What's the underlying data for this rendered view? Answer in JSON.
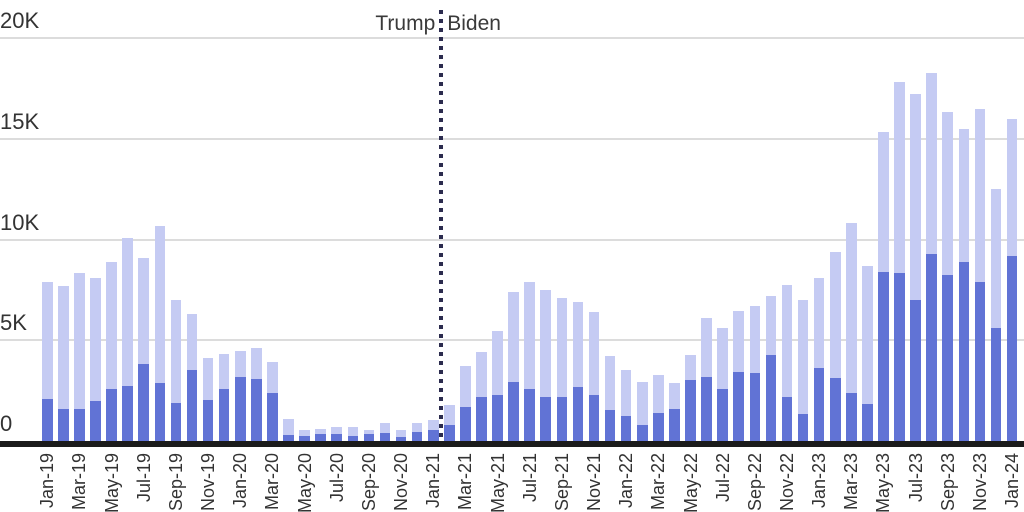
{
  "chart_data": {
    "type": "bar",
    "stacked": true,
    "title": "",
    "xlabel": "",
    "ylabel": "",
    "ylim": [
      0,
      20000
    ],
    "grid": "horizontal",
    "legend": "none",
    "x_tick_every": 2,
    "categories": [
      "Jan-19",
      "Feb-19",
      "Mar-19",
      "Apr-19",
      "May-19",
      "Jun-19",
      "Jul-19",
      "Aug-19",
      "Sep-19",
      "Oct-19",
      "Nov-19",
      "Dec-19",
      "Jan-20",
      "Feb-20",
      "Mar-20",
      "Apr-20",
      "May-20",
      "Jun-20",
      "Jul-20",
      "Aug-20",
      "Sep-20",
      "Oct-20",
      "Nov-20",
      "Dec-20",
      "Jan-21",
      "Feb-21",
      "Mar-21",
      "Apr-21",
      "May-21",
      "Jun-21",
      "Jul-21",
      "Aug-21",
      "Sep-21",
      "Oct-21",
      "Nov-21",
      "Dec-21",
      "Jan-22",
      "Feb-22",
      "Mar-22",
      "Apr-22",
      "May-22",
      "Jun-22",
      "Jul-22",
      "Aug-22",
      "Sep-22",
      "Oct-22",
      "Nov-22",
      "Dec-22",
      "Jan-23",
      "Feb-23",
      "Mar-23",
      "Apr-23",
      "May-23",
      "Jun-23",
      "Jul-23",
      "Aug-23",
      "Sep-23",
      "Oct-23",
      "Nov-23",
      "Dec-23",
      "Jan-24"
    ],
    "series": [
      {
        "name": "bottom-segment-dark-blue",
        "color": "#6173d5",
        "values": [
          2100,
          1600,
          1600,
          2000,
          2600,
          2750,
          3800,
          2900,
          1900,
          3500,
          2050,
          2600,
          3200,
          3100,
          2400,
          300,
          250,
          350,
          350,
          250,
          350,
          400,
          200,
          450,
          550,
          800,
          1700,
          2200,
          2300,
          2950,
          2600,
          2200,
          2200,
          2700,
          2300,
          1550,
          1250,
          800,
          1400,
          1600,
          3050,
          3200,
          2600,
          3400,
          3350,
          4250,
          2200,
          1350,
          3600,
          3150,
          2400,
          1850,
          8400,
          8350,
          7000,
          9300,
          8250,
          8900,
          7900,
          5600,
          9200
        ]
      },
      {
        "name": "top-segment-light-blue",
        "color": "#c5cbf3",
        "values": [
          5800,
          6100,
          6750,
          6100,
          6300,
          7300,
          5300,
          7750,
          5100,
          2800,
          2050,
          1700,
          1250,
          1500,
          1500,
          800,
          300,
          250,
          350,
          450,
          200,
          500,
          350,
          450,
          500,
          1000,
          2000,
          2200,
          3150,
          4450,
          5300,
          5300,
          4900,
          4200,
          4100,
          2650,
          2250,
          2150,
          1900,
          1300,
          1200,
          2900,
          3000,
          3050,
          3350,
          2950,
          5550,
          5650,
          4500,
          6250,
          8400,
          6850,
          6950,
          9450,
          10200,
          8950,
          8100,
          6600,
          8600,
          6900,
          6800
        ]
      }
    ],
    "y_ticks": [
      {
        "value": 0,
        "label": "0"
      },
      {
        "value": 5000,
        "label": "5K"
      },
      {
        "value": 10000,
        "label": "10K"
      },
      {
        "value": 15000,
        "label": "15K"
      },
      {
        "value": 20000,
        "label": "20K"
      }
    ],
    "annotations": [
      {
        "text": "Trump",
        "position": "left-of-divider"
      },
      {
        "text": "Biden",
        "position": "right-of-divider"
      }
    ],
    "divider": {
      "between": [
        "Jan-21",
        "Feb-21"
      ],
      "style": "dotted",
      "color": "#2b2b4e"
    }
  },
  "colors": {
    "background": "#ffffff",
    "gridline": "#dcdcdc",
    "axis_line": "#1b1b1b",
    "tick_label_text": "#333333",
    "annotation_text": "#3a3a3a",
    "divider": "#2b2b4e",
    "bar_dark": "#6173d5",
    "bar_light": "#c5cbf3"
  }
}
